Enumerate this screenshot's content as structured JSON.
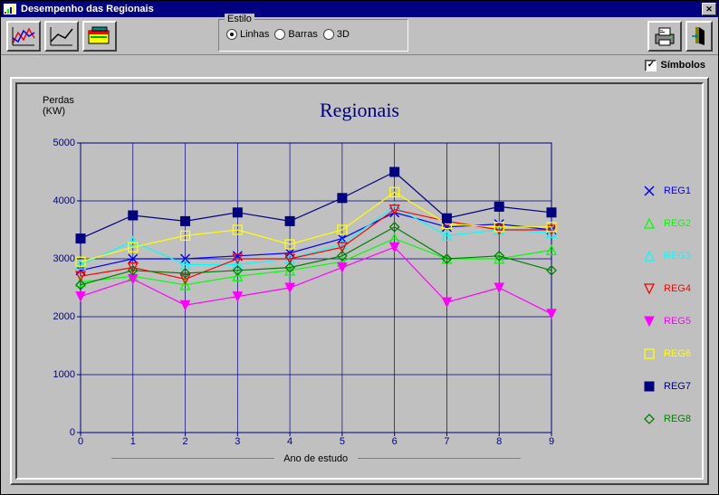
{
  "window": {
    "title": "Desempenho das Regionais"
  },
  "toolbar": {
    "estilo_label": "Estilo",
    "options": {
      "linhas": "Linhas",
      "barras": "Barras",
      "tresD": "3D"
    },
    "selected": "linhas"
  },
  "symbols": {
    "label": "Símbolos",
    "checked": true
  },
  "chart": {
    "title": "Regionais",
    "y_axis_label_line1": "Perdas",
    "y_axis_label_line2": "(KW)",
    "x_axis_label": "Ano de estudo",
    "background": "#c0c0c0",
    "grid_color": "#000080",
    "ylim": [
      0,
      5000
    ],
    "ytick_step": 1000,
    "xlim": [
      0,
      9
    ],
    "xtick_step": 1,
    "categories": [
      0,
      1,
      2,
      3,
      4,
      5,
      6,
      7,
      8,
      9
    ],
    "series": [
      {
        "name": "REG1",
        "color": "#0000ff",
        "marker": "x",
        "values": [
          2800,
          3000,
          3000,
          3050,
          3100,
          3350,
          3800,
          3550,
          3600,
          3500
        ]
      },
      {
        "name": "REG2",
        "color": "#00ff00",
        "marker": "triangle",
        "values": [
          2600,
          2700,
          2550,
          2700,
          2800,
          2950,
          3350,
          3000,
          3000,
          3150
        ]
      },
      {
        "name": "REG3",
        "color": "#00ffff",
        "marker": "triangle",
        "values": [
          2900,
          3300,
          2900,
          2900,
          3000,
          3250,
          3900,
          3400,
          3500,
          3450
        ]
      },
      {
        "name": "REG4",
        "color": "#ff0000",
        "marker": "triangle-down",
        "values": [
          2700,
          2850,
          2650,
          3000,
          3000,
          3200,
          3850,
          3650,
          3500,
          3500
        ]
      },
      {
        "name": "REG5",
        "color": "#ff00ff",
        "marker": "triangle-down-fill",
        "values": [
          2350,
          2650,
          2200,
          2350,
          2500,
          2850,
          3200,
          2250,
          2500,
          2050
        ]
      },
      {
        "name": "REG6",
        "color": "#ffff00",
        "marker": "square",
        "values": [
          2950,
          3200,
          3400,
          3500,
          3250,
          3500,
          4150,
          3600,
          3550,
          3550
        ]
      },
      {
        "name": "REG7",
        "color": "#000080",
        "marker": "square-fill",
        "values": [
          3350,
          3750,
          3650,
          3800,
          3650,
          4050,
          4500,
          3700,
          3900,
          3800
        ]
      },
      {
        "name": "REG8",
        "color": "#008000",
        "marker": "diamond",
        "values": [
          2550,
          2800,
          2750,
          2800,
          2850,
          3050,
          3550,
          3000,
          3050,
          2800
        ]
      }
    ]
  }
}
